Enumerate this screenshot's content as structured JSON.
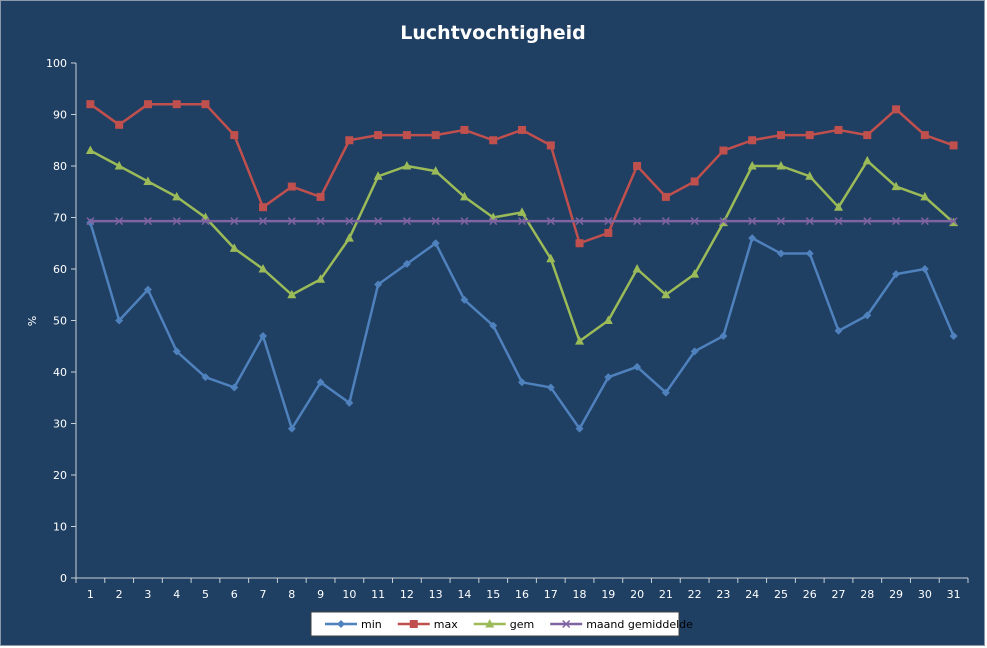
{
  "chart_data": {
    "type": "line",
    "title": "Luchtvochtigheid",
    "xlabel": "",
    "ylabel": "%",
    "ylim": [
      0,
      100
    ],
    "yticks": [
      0,
      10,
      20,
      30,
      40,
      50,
      60,
      70,
      80,
      90,
      100
    ],
    "grid": false,
    "legend": "bottom",
    "categories": [
      "1",
      "2",
      "3",
      "4",
      "5",
      "6",
      "7",
      "8",
      "9",
      "10",
      "11",
      "12",
      "13",
      "14",
      "15",
      "16",
      "17",
      "18",
      "19",
      "20",
      "21",
      "22",
      "23",
      "24",
      "25",
      "26",
      "27",
      "28",
      "29",
      "30",
      "31"
    ],
    "series": [
      {
        "name": "min",
        "color": "#4f81bd",
        "marker": "diamond",
        "values": [
          69,
          50,
          56,
          44,
          39,
          37,
          47,
          29,
          38,
          34,
          57,
          61,
          65,
          54,
          49,
          38,
          37,
          29,
          39,
          41,
          36,
          44,
          47,
          66,
          63,
          63,
          48,
          51,
          59,
          60,
          47
        ]
      },
      {
        "name": "max",
        "color": "#c0504d",
        "marker": "square",
        "values": [
          92,
          88,
          92,
          92,
          92,
          86,
          72,
          76,
          74,
          85,
          86,
          86,
          86,
          87,
          85,
          87,
          84,
          65,
          67,
          80,
          74,
          77,
          83,
          85,
          86,
          86,
          87,
          86,
          91,
          86,
          84
        ]
      },
      {
        "name": "gem",
        "color": "#9bbb59",
        "marker": "triangle",
        "values": [
          83,
          80,
          77,
          74,
          70,
          64,
          60,
          55,
          58,
          66,
          78,
          80,
          79,
          74,
          70,
          71,
          62,
          46,
          50,
          60,
          55,
          59,
          69,
          80,
          80,
          78,
          72,
          81,
          76,
          74,
          69
        ]
      },
      {
        "name": "maand gemiddelde",
        "color": "#8064a2",
        "marker": "x",
        "values": [
          69.3,
          69.3,
          69.3,
          69.3,
          69.3,
          69.3,
          69.3,
          69.3,
          69.3,
          69.3,
          69.3,
          69.3,
          69.3,
          69.3,
          69.3,
          69.3,
          69.3,
          69.3,
          69.3,
          69.3,
          69.3,
          69.3,
          69.3,
          69.3,
          69.3,
          69.3,
          69.3,
          69.3,
          69.3,
          69.3,
          69.3
        ]
      }
    ]
  },
  "colors": {
    "background": "#1f3f63",
    "axis": "#c8d0d8",
    "text": "#ffffff",
    "legend_background": "#ffffff"
  }
}
